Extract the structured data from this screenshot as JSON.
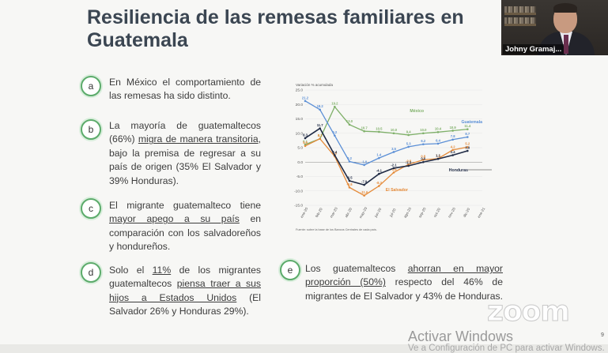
{
  "slide": {
    "title_line1": "Resiliencia de las remesas familiares en",
    "title_line2": "Guatemala",
    "page_number": "9"
  },
  "bullets": [
    {
      "letter": "a"
    },
    {
      "letter": "b"
    },
    {
      "letter": "c"
    },
    {
      "letter": "d"
    },
    {
      "letter": "e"
    }
  ],
  "para_a": {
    "t1": "En México el comportamiento de las remesas ha sido distinto."
  },
  "para_b": {
    "t1": "La mayoría de guatemaltecos (66%) ",
    "u1": "migra de manera transitoria",
    "t2": ", bajo la premisa de regresar a su país de origen (35% El Salvador y 39% Honduras)."
  },
  "para_c": {
    "t1": "El migrante guatemalteco tiene ",
    "u1": "mayor apego a su país",
    "t2": " en comparación con los salvadoreños y hondureños."
  },
  "para_d": {
    "t1": "Solo el ",
    "u1": "11%",
    "t2": " de los migrantes guatemaltecos ",
    "u2": "piensa traer a sus hijos a Estados Unidos",
    "t3": " (El Salvador 26% y Honduras 29%)."
  },
  "para_e": {
    "t1": "Los guatemaltecos ",
    "u1": "ahorran en mayor proporción (50%)",
    "t2": " respecto del 46% de migrantes de El Salvador y 43% de Honduras."
  },
  "chart_data": {
    "type": "line",
    "ylabel": "Variación % acumulada",
    "source": "Fuente: sobre la base de los Bancos Centrales de cada país.",
    "categories": [
      "ene-20",
      "feb-20",
      "mar-20",
      "abr-20",
      "may-20",
      "jun-20",
      "jul-20",
      "ago-20",
      "sep-20",
      "oct-20",
      "nov-20",
      "dic-20",
      "ene-21"
    ],
    "ylim": [
      -15,
      25
    ],
    "yticks": [
      25,
      20,
      15,
      10,
      5,
      0,
      -5,
      -10,
      -15
    ],
    "series": [
      {
        "name": "México",
        "color": "#7fb069",
        "values": [
          6.1,
          8.1,
          19.2,
          13.0,
          10.7,
          10.5,
          10.0,
          9.4,
          10.0,
          10.4,
          10.9,
          11.4,
          null
        ],
        "labels": [
          "6.1",
          "8.1",
          "19.2",
          "13.0",
          "10.7",
          "10.5",
          "10.0",
          "9.4",
          "10.0",
          "10.4",
          "10.9",
          "11.4",
          ""
        ]
      },
      {
        "name": "Guatemala",
        "color": "#5b8fd6",
        "values": [
          21.2,
          18.2,
          9.2,
          0.2,
          -1.0,
          1.4,
          3.5,
          5.3,
          6.2,
          6.4,
          7.8,
          8.7,
          null
        ],
        "labels": [
          "21.2",
          "18.2",
          "9.2",
          "0.2",
          "-1.0",
          "1.4",
          "3.5",
          "5.3",
          "6.2",
          "6.4",
          "7.8",
          "8.7",
          ""
        ]
      },
      {
        "name": "El Salvador",
        "color": "#e58b3a",
        "values": [
          5.6,
          8.1,
          2.0,
          -8.8,
          -11.6,
          -8.3,
          -3.6,
          -0.8,
          0.8,
          1.2,
          4.2,
          5.2,
          null
        ],
        "labels": [
          "5.6",
          "8.1",
          "2.0",
          "-8.8",
          "-11.6",
          "-8.3",
          "-3.6",
          "-0.8",
          "0.8",
          "1.2",
          "4.2",
          "5.2",
          ""
        ]
      },
      {
        "name": "Honduras",
        "color": "#1f2a44",
        "values": [
          8.3,
          11.7,
          2.4,
          -6.5,
          -7.9,
          -4.1,
          -2.1,
          -1.3,
          0.0,
          1.1,
          2.4,
          3.9,
          null
        ],
        "labels": [
          "8.3",
          "11.7",
          "2.4",
          "-6.5",
          "-7.9",
          "-4.1",
          "-2.1",
          "-1.3",
          "0.0",
          "1.1",
          "2.4",
          "3.9",
          ""
        ]
      }
    ]
  },
  "webcam": {
    "name": "Johny Gramaj..."
  },
  "overlay": {
    "zoom_logo": "zoom",
    "activate_title": "Activar Windows",
    "activate_sub": "Ve a Configuración de PC para activar Windows."
  }
}
